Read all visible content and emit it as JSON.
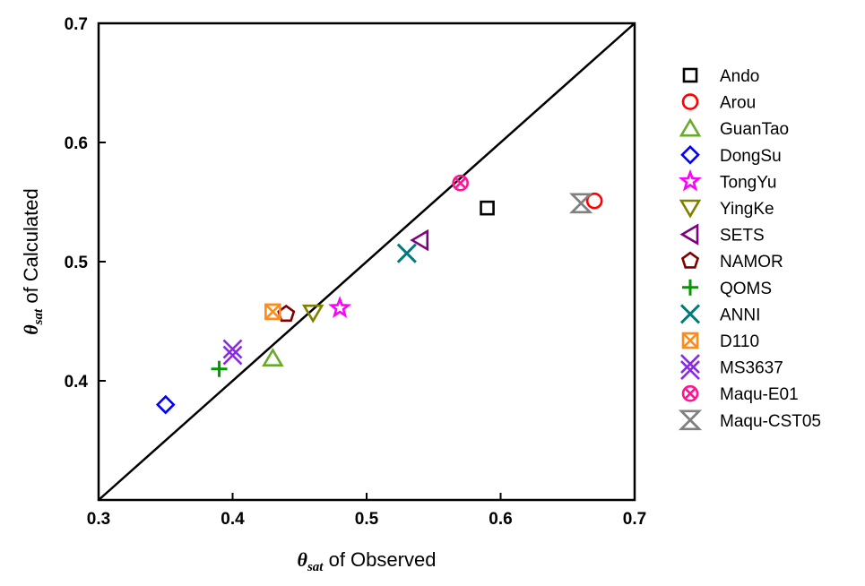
{
  "chart_data": {
    "type": "scatter",
    "title": "",
    "xlabel": {
      "symbol": "θ",
      "subscript": "sat",
      "text": " of Observed"
    },
    "ylabel": {
      "symbol": "θ",
      "subscript": "sat",
      "text": " of Calculated"
    },
    "xlim": [
      0.3,
      0.7
    ],
    "ylim": [
      0.3,
      0.7
    ],
    "xticks": [
      "0.3",
      "0.4",
      "0.5",
      "0.6",
      "0.7"
    ],
    "yticks": [
      "0.4",
      "0.5",
      "0.6",
      "0.7"
    ],
    "grid": false,
    "legend_position": "right",
    "reference_line": {
      "type": "1:1",
      "from": [
        0.3,
        0.3
      ],
      "to": [
        0.7,
        0.7
      ],
      "color": "#000000"
    },
    "series": [
      {
        "name": "Ando",
        "x": 0.59,
        "y": 0.545,
        "marker": "square",
        "color": "#000000"
      },
      {
        "name": "Arou",
        "x": 0.67,
        "y": 0.551,
        "marker": "circle",
        "color": "#ff0000"
      },
      {
        "name": "GuanTao",
        "x": 0.43,
        "y": 0.419,
        "marker": "triangle-up",
        "color": "#6aaa2a"
      },
      {
        "name": "DongSu",
        "x": 0.35,
        "y": 0.38,
        "marker": "diamond",
        "color": "#0000ff"
      },
      {
        "name": "TongYu",
        "x": 0.48,
        "y": 0.461,
        "marker": "star",
        "color": "#ff00ff"
      },
      {
        "name": "YingKe",
        "x": 0.46,
        "y": 0.457,
        "marker": "triangle-down",
        "color": "#808000"
      },
      {
        "name": "SETS",
        "x": 0.54,
        "y": 0.518,
        "marker": "triangle-left",
        "color": "#800080"
      },
      {
        "name": "NAMOR",
        "x": 0.44,
        "y": 0.456,
        "marker": "pentagon",
        "color": "#800000"
      },
      {
        "name": "QOMS",
        "x": 0.39,
        "y": 0.41,
        "marker": "plus",
        "color": "#009900"
      },
      {
        "name": "ANNI",
        "x": 0.53,
        "y": 0.507,
        "marker": "x",
        "color": "#007b7b"
      },
      {
        "name": "D110",
        "x": 0.43,
        "y": 0.458,
        "marker": "square-x",
        "color": "#ff8c1a"
      },
      {
        "name": "MS3637",
        "x": 0.4,
        "y": 0.424,
        "marker": "double-x",
        "color": "#8a2be2"
      },
      {
        "name": "Maqu-E01",
        "x": 0.57,
        "y": 0.566,
        "marker": "circle-x",
        "color": "#ff1493"
      },
      {
        "name": "Maqu-CST05",
        "x": 0.66,
        "y": 0.549,
        "marker": "x-triangles",
        "color": "#808080"
      }
    ]
  }
}
